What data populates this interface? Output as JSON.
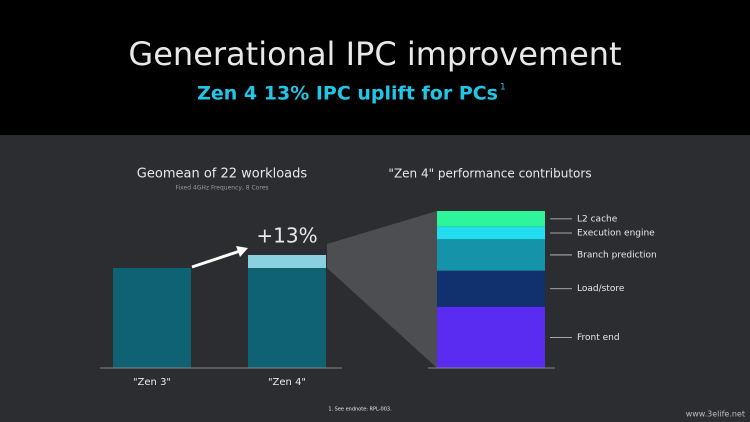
{
  "header": {
    "title": "Generational IPC improvement",
    "subtitle": "Zen 4  13% IPC uplift for PCs",
    "superscript": "1"
  },
  "chart_data": [
    {
      "type": "bar",
      "title": "Geomean of 22 workloads",
      "subtitle": "Fixed 4GHz Frequency, 8 Cores",
      "categories": [
        "\"Zen 3\"",
        "\"Zen 4\""
      ],
      "series": [
        {
          "color": "#0e6272",
          "values": [
            100,
            100
          ]
        },
        {
          "color": "#8ad0de",
          "values": [
            null,
            13
          ],
          "value_labels": [
            null,
            "+13%"
          ]
        }
      ]
    },
    {
      "type": "stacked-bar",
      "title": "\"Zen 4\" performance contributors",
      "series": [
        {
          "name": "Front end",
          "color": "#5a2cf2",
          "values": [
            39
          ]
        },
        {
          "name": "Load/store",
          "color": "#10306e",
          "values": [
            23
          ]
        },
        {
          "name": "Branch prediction",
          "color": "#1593a8",
          "values": [
            20
          ]
        },
        {
          "name": "Execution engine",
          "color": "#22dcef",
          "values": [
            8
          ]
        },
        {
          "name": "L2 cache",
          "color": "#2ef59a",
          "values": [
            10
          ]
        }
      ]
    }
  ],
  "footnote": "1. See endnote: RPL-003.",
  "watermark": "www.3elife.net"
}
